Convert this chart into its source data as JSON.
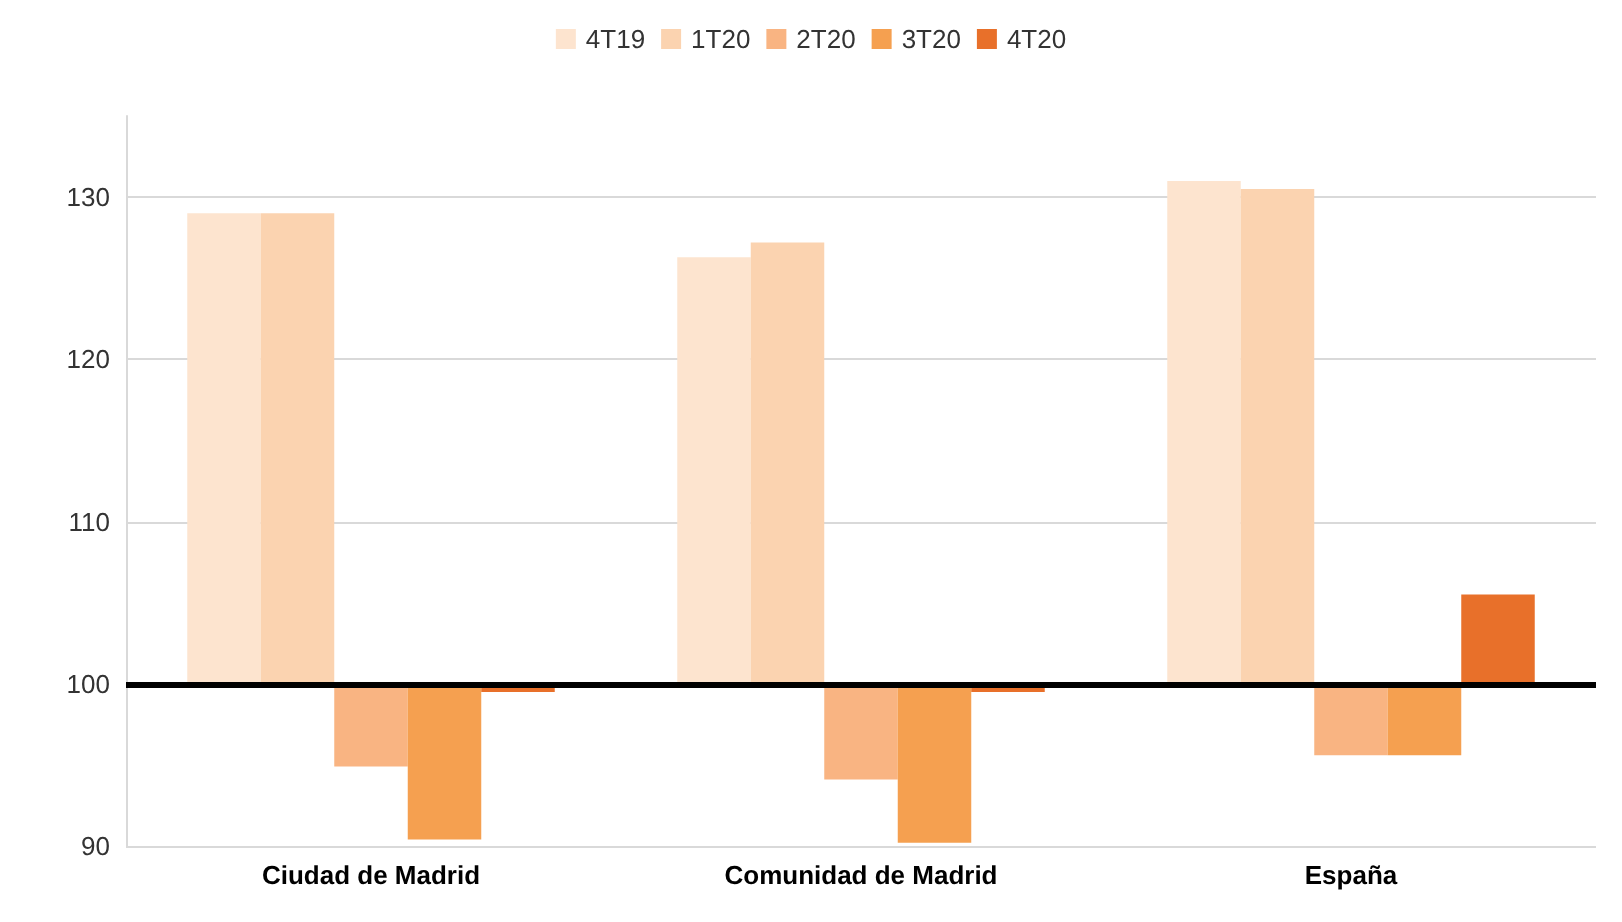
{
  "chart_data": {
    "type": "bar",
    "categories": [
      "Ciudad de Madrid",
      "Comunidad de Madrid",
      "España"
    ],
    "series": [
      {
        "name": "4T19",
        "color": "#fde4cf",
        "base": [
          100,
          100,
          100
        ],
        "values": [
          29.0,
          26.3,
          31.0
        ]
      },
      {
        "name": "1T20",
        "color": "#fbd3b0",
        "base": [
          100,
          100,
          100
        ],
        "values": [
          29.0,
          27.2,
          30.5
        ]
      },
      {
        "name": "2T20",
        "color": "#f9b482",
        "base": [
          100,
          100,
          100
        ],
        "values": [
          -5.1,
          -5.9,
          -4.4
        ]
      },
      {
        "name": "3T20",
        "color": "#f5a050",
        "base": [
          100,
          100,
          100
        ],
        "values": [
          -9.6,
          -9.8,
          -4.4
        ]
      },
      {
        "name": "4T20",
        "color": "#e8702a",
        "base": [
          100,
          100,
          100
        ],
        "values": [
          -0.5,
          -0.5,
          5.5
        ]
      }
    ],
    "ylim": [
      90,
      135
    ],
    "yticks": [
      90,
      100,
      110,
      120,
      130
    ],
    "grid": "y",
    "legend": "top",
    "ref_lines": [
      {
        "axis": "y",
        "value": 100,
        "color": "#000000"
      }
    ]
  }
}
